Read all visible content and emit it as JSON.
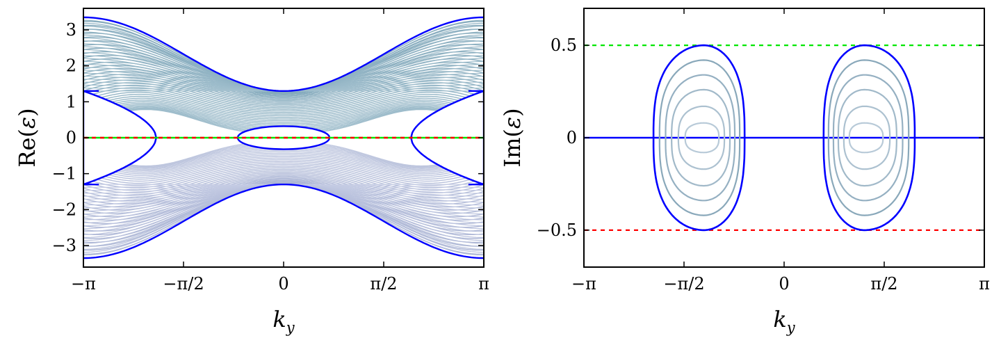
{
  "chart_data": [
    {
      "type": "line",
      "panel": "left",
      "ylabel_main": "Re(",
      "ylabel_sym": "ε",
      "ylabel_close": ")",
      "xlabel_main": "k",
      "xlabel_sub": "y",
      "xlim": [
        -3.14159,
        3.14159
      ],
      "ylim": [
        -3.6,
        3.6
      ],
      "xticks": [
        {
          "value": -3.14159,
          "label": "−π"
        },
        {
          "value": -1.5708,
          "label": "−π/2"
        },
        {
          "value": 0,
          "label": "0"
        },
        {
          "value": 1.5708,
          "label": "π/2"
        },
        {
          "value": 3.14159,
          "label": "π"
        }
      ],
      "yticks": [
        {
          "value": 3,
          "label": "3"
        },
        {
          "value": 2,
          "label": "2"
        },
        {
          "value": 1,
          "label": "1"
        },
        {
          "value": 0,
          "label": "0"
        },
        {
          "value": -1,
          "label": "−1"
        },
        {
          "value": -2,
          "label": "−2"
        },
        {
          "value": -3,
          "label": "−3"
        }
      ],
      "envelope": {
        "outer_at_zero": 1.3,
        "outer_at_pi": 3.35,
        "inner_at_zero": 1.3,
        "inner_at_pi": 1.3,
        "center_loop": {
          "half_width": 0.72,
          "height": 0.32
        },
        "side_loop_tip": 2.0
      },
      "band_curve_count": 36,
      "lines": {
        "zero_green": 0,
        "zero_red": 0
      },
      "colors": {
        "boundary": "#0000ff",
        "bulk_top": "#7fa6b9",
        "bulk_bottom": "#a9b3d3",
        "green": "#00e600",
        "red": "#ff0000"
      }
    },
    {
      "type": "line",
      "panel": "right",
      "ylabel_main": "Im(",
      "ylabel_sym": "ε",
      "ylabel_close": ")",
      "xlabel_main": "k",
      "xlabel_sub": "y",
      "xlim": [
        -3.14159,
        3.14159
      ],
      "ylim": [
        -0.7,
        0.7
      ],
      "xticks": [
        {
          "value": -3.14159,
          "label": "−π"
        },
        {
          "value": -1.5708,
          "label": "−π/2"
        },
        {
          "value": 0,
          "label": "0"
        },
        {
          "value": 1.5708,
          "label": "π/2"
        },
        {
          "value": 3.14159,
          "label": "π"
        }
      ],
      "yticks": [
        {
          "value": 0.5,
          "label": "0.5"
        },
        {
          "value": 0,
          "label": "0"
        },
        {
          "value": -0.5,
          "label": "−0.5"
        }
      ],
      "loops": [
        {
          "x_left": -2.05,
          "x_right": -0.62,
          "x_peak": -1.26
        },
        {
          "x_left": 0.62,
          "x_right": 2.05,
          "x_peak": 1.26
        }
      ],
      "loop_amplitudes": [
        0.5,
        0.42,
        0.34,
        0.26,
        0.17,
        0.08
      ],
      "lines": {
        "upper_green": 0.5,
        "lower_red": -0.5,
        "zero_blue": 0
      },
      "colors": {
        "boundary": "#0000ff",
        "inner": "#7d9fb3",
        "green": "#00e600",
        "red": "#ff0000"
      }
    }
  ]
}
